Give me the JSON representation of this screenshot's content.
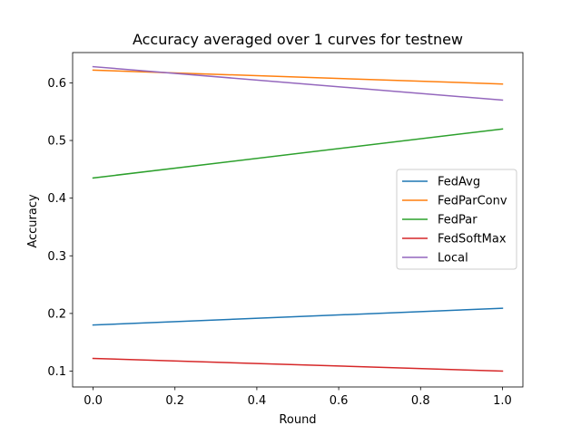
{
  "chart_data": {
    "type": "line",
    "title": "Accuracy averaged over 1 curves for testnew",
    "xlabel": "Round",
    "ylabel": "Accuracy",
    "xlim": [
      -0.05,
      1.05
    ],
    "ylim": [
      0.0725,
      0.6525
    ],
    "x": [
      0.0,
      1.0
    ],
    "xticks": [
      0.0,
      0.2,
      0.4,
      0.6,
      0.8,
      1.0
    ],
    "xtick_labels": [
      "0.0",
      "0.2",
      "0.4",
      "0.6",
      "0.8",
      "1.0"
    ],
    "yticks": [
      0.1,
      0.2,
      0.3,
      0.4,
      0.5,
      0.6
    ],
    "ytick_labels": [
      "0.1",
      "0.2",
      "0.3",
      "0.4",
      "0.5",
      "0.6"
    ],
    "grid": false,
    "legend_position": "center-right",
    "series": [
      {
        "name": "FedAvg",
        "color": "#1f77b4",
        "values": [
          0.18,
          0.209
        ]
      },
      {
        "name": "FedParConv",
        "color": "#ff7f0e",
        "values": [
          0.622,
          0.598
        ]
      },
      {
        "name": "FedPar",
        "color": "#2ca02c",
        "values": [
          0.435,
          0.52
        ]
      },
      {
        "name": "FedSoftMax",
        "color": "#d62728",
        "values": [
          0.122,
          0.1
        ]
      },
      {
        "name": "Local",
        "color": "#9467bd",
        "values": [
          0.628,
          0.57
        ]
      }
    ]
  }
}
